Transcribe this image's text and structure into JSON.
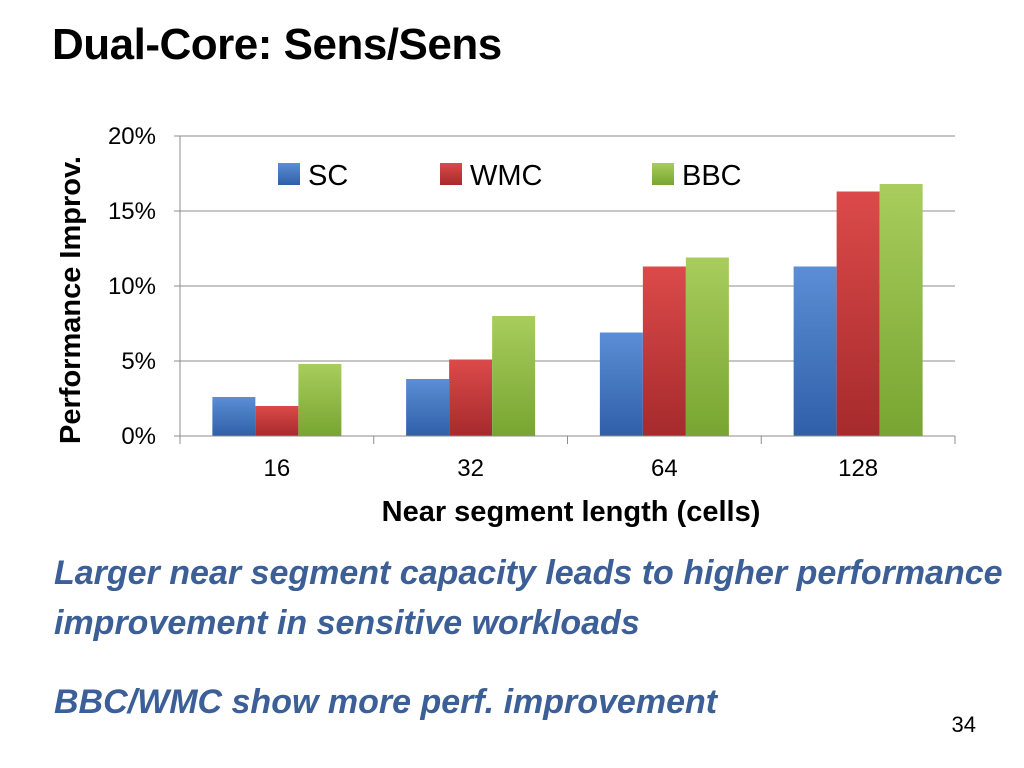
{
  "slide": {
    "title": "Dual-Core: Sens/Sens",
    "bullets": [
      "Larger near segment capacity leads to higher performance improvement in sensitive workloads",
      "BBC/WMC show more perf. improvement"
    ],
    "page_number": "34"
  },
  "chart_data": {
    "type": "bar",
    "xlabel": "Near segment length (cells)",
    "ylabel": "Performance Improv.",
    "categories": [
      "16",
      "32",
      "64",
      "128"
    ],
    "ylim": [
      0,
      20
    ],
    "yticks": [
      0,
      5,
      10,
      15,
      20
    ],
    "ytick_labels": [
      "0%",
      "5%",
      "10%",
      "15%",
      "20%"
    ],
    "grid": true,
    "legend_position": "top",
    "series": [
      {
        "name": "SC",
        "color": "#3c6fc0",
        "values": [
          2.6,
          3.8,
          6.9,
          11.3
        ]
      },
      {
        "name": "WMC",
        "color": "#c8383a",
        "values": [
          2.0,
          5.1,
          11.3,
          16.3
        ]
      },
      {
        "name": "BBC",
        "color": "#8cb83e",
        "values": [
          4.8,
          8.0,
          11.9,
          16.8
        ]
      }
    ]
  }
}
